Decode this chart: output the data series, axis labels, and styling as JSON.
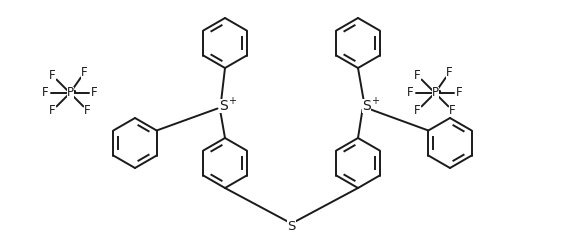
{
  "bg_color": "#ffffff",
  "line_color": "#1a1a1a",
  "line_width": 1.4,
  "font_size": 8.5,
  "figsize": [
    5.83,
    2.48
  ],
  "dpi": 100,
  "xlim": [
    0,
    58.3
  ],
  "ylim": [
    0,
    24.8
  ]
}
